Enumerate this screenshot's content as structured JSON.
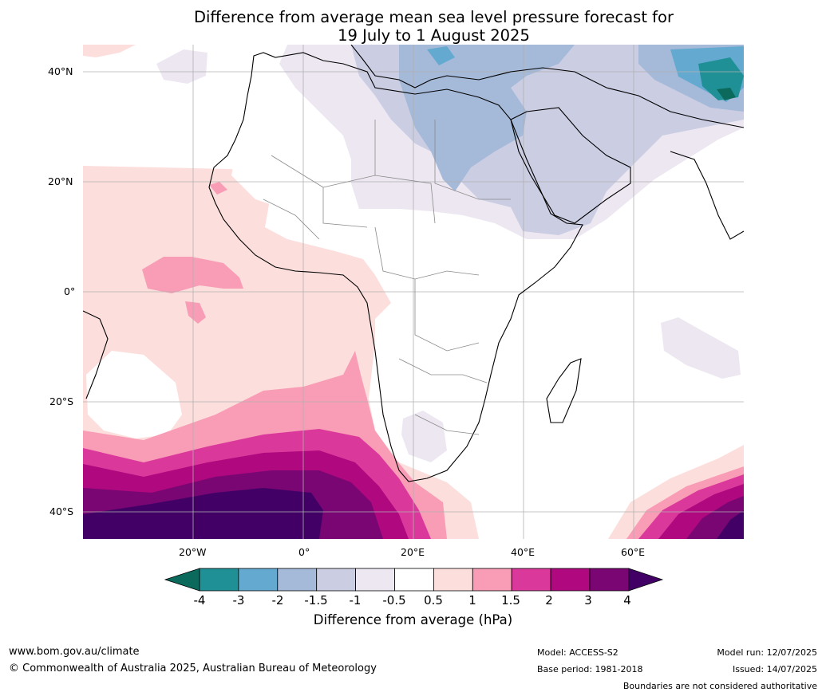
{
  "title": {
    "line1": "Difference from average mean sea level pressure forecast for",
    "line2": "19 July to 1 August 2025"
  },
  "map": {
    "region": "Africa, Europe and Middle East",
    "lat_labels": [
      "40°N",
      "20°N",
      "0°",
      "20°S",
      "40°S"
    ],
    "lon_labels": [
      "20°W",
      "0°",
      "20°E",
      "40°E",
      "60°E"
    ],
    "gridlines": true
  },
  "colorbar": {
    "title": "Difference from average (hPa)",
    "tick_labels": [
      "-4",
      "-3",
      "-2",
      "-1.5",
      "-1",
      "-0.5",
      "0.5",
      "1",
      "1.5",
      "2",
      "3",
      "4"
    ],
    "colors": [
      "#0b6a5b",
      "#1f9096",
      "#64a9d0",
      "#a5b9d8",
      "#cbcde3",
      "#ede7f2",
      "#ffffff",
      "#fcdfdd",
      "#f99db6",
      "#db389b",
      "#b0087f",
      "#7a0673",
      "#420067"
    ]
  },
  "footer": {
    "website": "www.bom.gov.au/climate",
    "copyright": "© Commonwealth of Australia 2025, Australian Bureau of Meteorology",
    "model": "Model: ACCESS-S2",
    "base_period": "Base period: 1981-2018",
    "model_run": "Model run: 12/07/2025",
    "issued": "Issued: 14/07/2025",
    "disclaimer": "Boundaries are not considered authoritative"
  }
}
